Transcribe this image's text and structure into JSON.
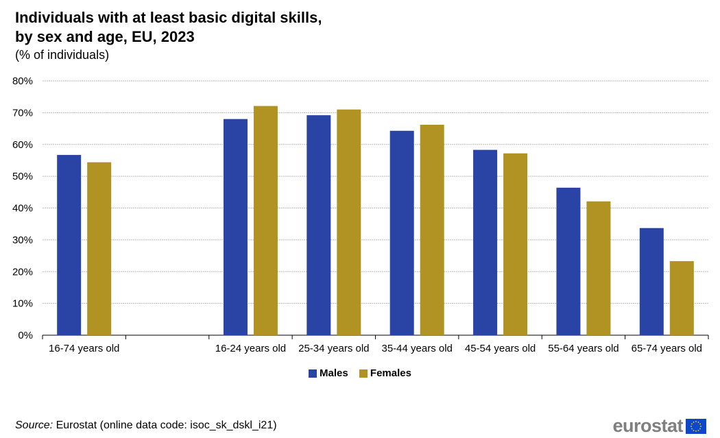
{
  "title_line1": "Individuals with at least basic digital skills,",
  "title_line2": "by sex and age, EU, 2023",
  "subtitle": "(% of individuals)",
  "source_label": "Source:",
  "source_text": " Eurostat (online data code: isoc_sk_dskl_i21)",
  "brand": "eurostat",
  "colors": {
    "males": "#2a44a6",
    "females": "#b09322",
    "grid": "#b9b9b9"
  },
  "chart_data": {
    "type": "bar",
    "categories": [
      "16-74 years old",
      "",
      "16-24 years old",
      "25-34 years old",
      "35-44 years old",
      "45-54 years old",
      "55-64 years old",
      "65-74 years old"
    ],
    "series": [
      {
        "name": "Males",
        "values": [
          56.7,
          null,
          68.0,
          69.2,
          64.3,
          58.3,
          46.4,
          33.7
        ]
      },
      {
        "name": "Females",
        "values": [
          54.4,
          null,
          72.1,
          71.0,
          66.2,
          57.2,
          42.1,
          23.3
        ]
      }
    ],
    "ylim": [
      0,
      80
    ],
    "yticks": [
      "0%",
      "10%",
      "20%",
      "30%",
      "40%",
      "50%",
      "60%",
      "70%",
      "80%"
    ],
    "grid": true,
    "legend": "bottom-center"
  }
}
